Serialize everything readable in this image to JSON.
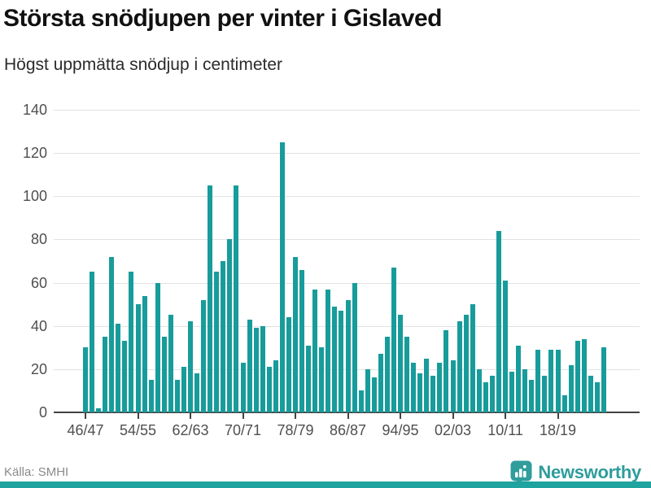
{
  "title": "Största snödjupen per vinter i Gislaved",
  "subtitle": "Högst uppmätta snödjup i centimeter",
  "source": "Källa: SMHI",
  "brand": {
    "name": "Newsworthy",
    "icon": "bar-chart-bubble-badge"
  },
  "colors": {
    "bar": "#179c9b",
    "grid": "#e2e2e2",
    "axis": "#424242",
    "title": "#111111",
    "subtitle": "#2b2b2b",
    "tick_label": "#4f4f4f",
    "source_text": "#8a8a8a",
    "brand_teal": "#2f9d9c",
    "bottom_accent": "#1fa39f"
  },
  "chart_data": {
    "type": "bar",
    "title": "Största snödjupen per vinter i Gislaved",
    "subtitle": "Högst uppmätta snödjup i centimeter",
    "unit": "cm",
    "xlabel": "",
    "ylabel": "",
    "ylim": [
      0,
      140
    ],
    "y_ticks": [
      0,
      20,
      40,
      60,
      80,
      100,
      120,
      140
    ],
    "grid": "horizontal",
    "legend": "none",
    "categories": [
      "46/47",
      "47/48",
      "48/49",
      "49/50",
      "50/51",
      "51/52",
      "52/53",
      "53/54",
      "54/55",
      "55/56",
      "56/57",
      "57/58",
      "58/59",
      "59/60",
      "60/61",
      "61/62",
      "62/63",
      "63/64",
      "64/65",
      "65/66",
      "66/67",
      "67/68",
      "68/69",
      "69/70",
      "70/71",
      "71/72",
      "72/73",
      "73/74",
      "74/75",
      "75/76",
      "76/77",
      "77/78",
      "78/79",
      "79/80",
      "80/81",
      "81/82",
      "82/83",
      "83/84",
      "84/85",
      "85/86",
      "86/87",
      "87/88",
      "88/89",
      "89/90",
      "90/91",
      "91/92",
      "92/93",
      "93/94",
      "94/95",
      "95/96",
      "96/97",
      "97/98",
      "98/99",
      "99/00",
      "00/01",
      "01/02",
      "02/03",
      "03/04",
      "04/05",
      "05/06",
      "06/07",
      "07/08",
      "08/09",
      "09/10",
      "10/11",
      "11/12",
      "12/13",
      "13/14",
      "14/15",
      "15/16",
      "16/17",
      "17/18",
      "18/19",
      "19/20",
      "20/21",
      "21/22",
      "22/23",
      "23/24",
      "24/25",
      "25/26"
    ],
    "values": [
      30,
      65,
      2,
      35,
      72,
      41,
      33,
      65,
      50,
      54,
      15,
      60,
      35,
      45,
      15,
      21,
      42,
      18,
      52,
      105,
      65,
      70,
      80,
      105,
      23,
      43,
      39,
      40,
      21,
      24,
      125,
      44,
      72,
      66,
      31,
      57,
      30,
      57,
      49,
      47,
      52,
      60,
      10,
      20,
      16,
      27,
      35,
      67,
      45,
      35,
      23,
      18,
      25,
      17,
      23,
      38,
      24,
      42,
      45,
      50,
      20,
      14,
      17,
      84,
      61,
      19,
      31,
      20,
      15,
      29,
      17,
      29,
      29,
      8,
      22,
      33,
      34,
      17,
      14,
      30
    ],
    "x_tick_labels": [
      "46/47",
      "54/55",
      "62/63",
      "70/71",
      "78/79",
      "86/87",
      "94/95",
      "02/03",
      "10/11",
      "18/19"
    ]
  }
}
